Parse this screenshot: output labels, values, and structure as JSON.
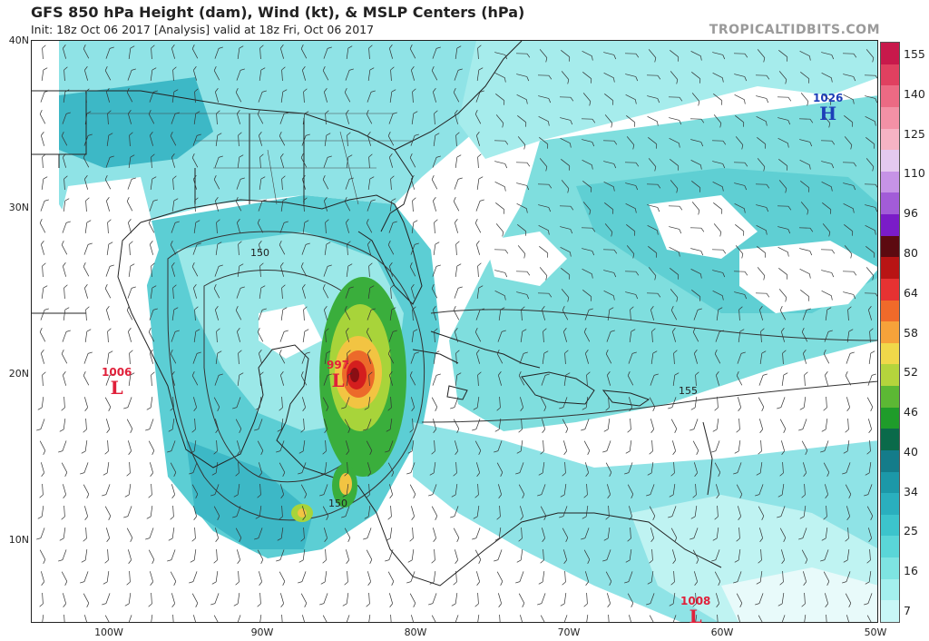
{
  "header": {
    "title": "GFS 850 hPa Height (dam), Wind (kt), & MSLP Centers (hPa)",
    "subtitle": "Init: 18z Oct 06 2017   [Analysis]   valid at 18z Fri, Oct 06 2017",
    "brand": "TROPICALTIDBITS.COM"
  },
  "axes": {
    "lat_labels": [
      "40N",
      "30N",
      "20N",
      "10N"
    ],
    "lon_labels": [
      "100W",
      "90W",
      "80W",
      "70W",
      "60W",
      "50W"
    ]
  },
  "colorbar": {
    "labels": [
      "155",
      "140",
      "125",
      "110",
      "96",
      "80",
      "64",
      "58",
      "52",
      "46",
      "40",
      "34",
      "25",
      "16",
      "7"
    ],
    "colors": [
      "#c8194b",
      "#e04060",
      "#ec6a84",
      "#f391a6",
      "#f6b3c4",
      "#e4c9ef",
      "#c693e6",
      "#a25cd8",
      "#7a1cc8",
      "#5c0a10",
      "#b81414",
      "#e63232",
      "#f06a2a",
      "#f6a23a",
      "#f0d84a",
      "#b4d43c",
      "#5cb834",
      "#1f9c2a",
      "#0a6a4a",
      "#147c8a",
      "#1c98a8",
      "#2aafbe",
      "#3cc4cc",
      "#5ad6d8",
      "#7ee4e2",
      "#a4efee",
      "#c8f7f7"
    ]
  },
  "pressure_centers": [
    {
      "type": "L",
      "value": "1006"
    },
    {
      "type": "L",
      "value": "997"
    },
    {
      "type": "L",
      "value": "1008"
    },
    {
      "type": "H",
      "value": "1026"
    }
  ],
  "contour_labels": [
    "150",
    "150",
    "155"
  ]
}
